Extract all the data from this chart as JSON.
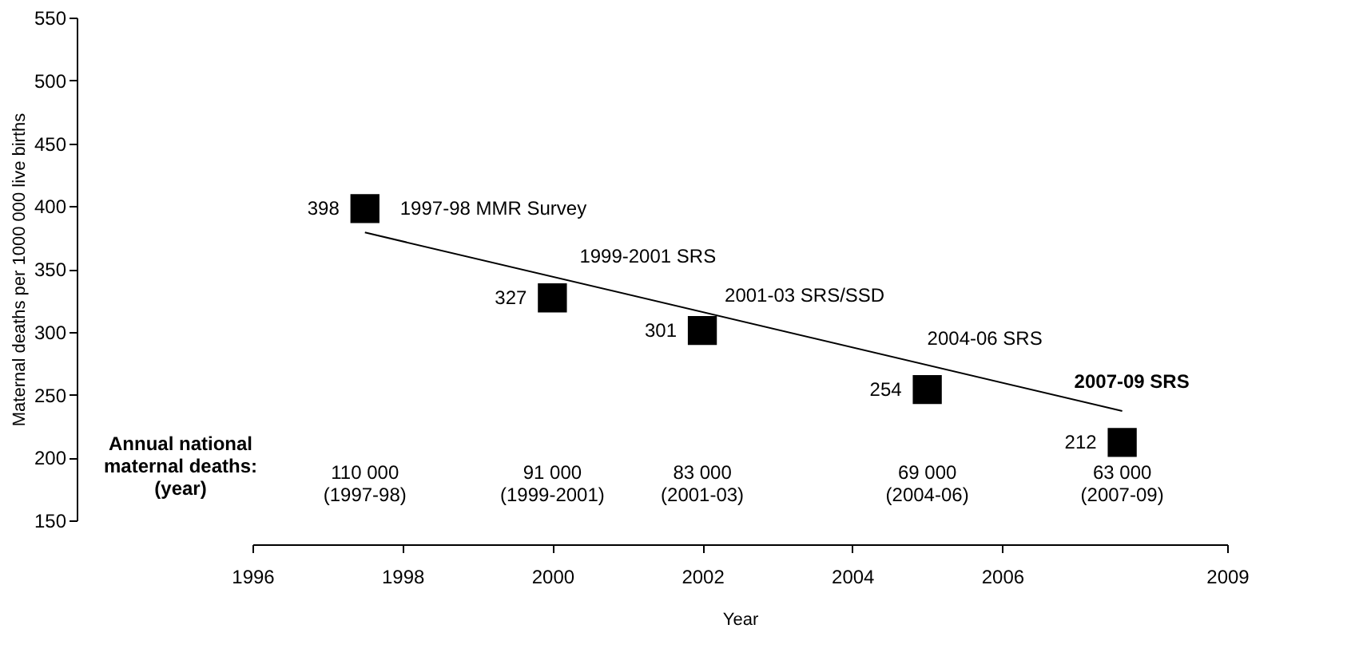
{
  "chart_data": {
    "type": "scatter",
    "xlabel": "Year",
    "ylabel": "Maternal deaths per 1000 000 live births",
    "xlim": [
      1996,
      2009
    ],
    "xticks": [
      1996,
      1998,
      2000,
      2002,
      2004,
      2006,
      2009
    ],
    "ylim": [
      150,
      550
    ],
    "yticks": [
      150,
      200,
      250,
      300,
      350,
      400,
      450,
      500,
      550
    ],
    "grid": false,
    "series": [
      {
        "color": "#000000",
        "marker": "square",
        "x": [
          1997.5,
          2000,
          2002,
          2005,
          2007.6
        ],
        "values": [
          398,
          327,
          301,
          254,
          212
        ],
        "value_labels": [
          "398",
          "327",
          "301",
          "254",
          "212"
        ]
      },
      {
        "type": "line",
        "color": "#000000",
        "x": [
          1997.5,
          2007.6
        ],
        "values": [
          379,
          237
        ]
      }
    ],
    "annotations": [
      {
        "text": "1997-98 MMR Survey",
        "x": 1997.5,
        "y": 398
      },
      {
        "text": "1999-2001 SRS",
        "x": 2000,
        "y": 327
      },
      {
        "text": "2001-03 SRS/SSD",
        "x": 2002,
        "y": 301
      },
      {
        "text": "2004-06 SRS",
        "x": 2005,
        "y": 254
      },
      {
        "text": "2007-09 SRS",
        "x": 2007.6,
        "y": 212
      },
      "Annual national\nmaternal deaths:\n(year)",
      "110 000\n(1997-98)",
      "91 000\n(1999-2001)",
      "83 000\n(2001-03)",
      "69 000\n(2004-06)",
      "63 000\n(2007-09)"
    ]
  }
}
